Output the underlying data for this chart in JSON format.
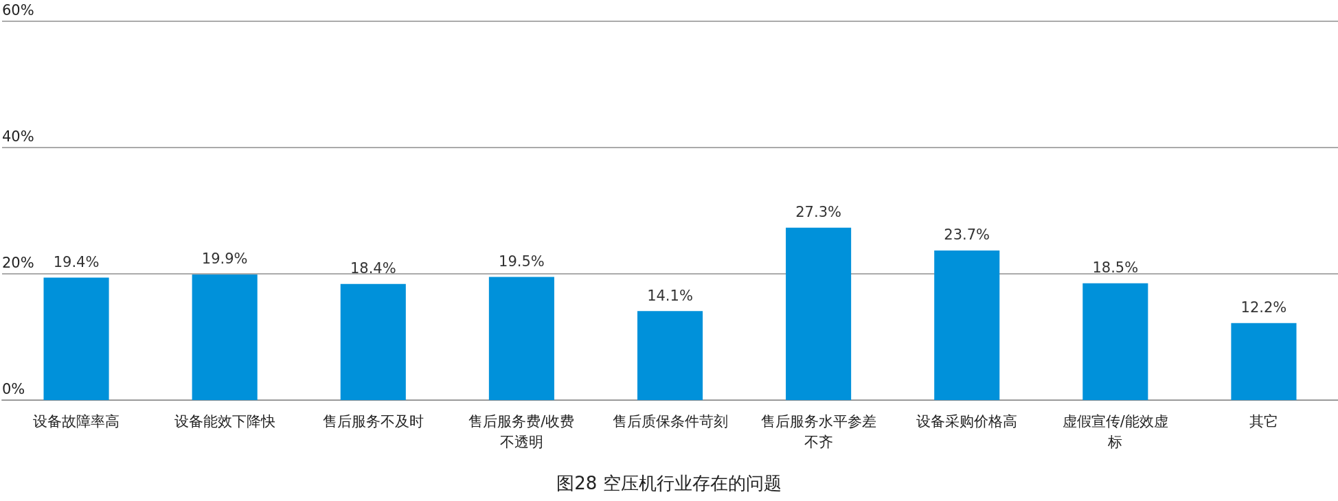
{
  "chart_data": {
    "type": "bar",
    "title": "图28 空压机行业存在的问题",
    "categories": [
      "设备故障率高",
      "设备能效下降快",
      "售后服务不及时",
      "售后服务费/收费不透明",
      "售后质保条件苛刻",
      "售后服务水平参差不齐",
      "设备采购价格高",
      "虚假宣传/能效虚标",
      "其它"
    ],
    "values": [
      19.4,
      19.9,
      18.4,
      19.5,
      14.1,
      27.3,
      23.7,
      18.5,
      12.2
    ],
    "color": "#0091da",
    "ylim": [
      0,
      60
    ],
    "yticks": [
      {
        "value": 0,
        "label": "0%"
      },
      {
        "value": 20,
        "label": "20%"
      },
      {
        "value": 40,
        "label": "40%"
      },
      {
        "value": 60,
        "label": "60%"
      }
    ],
    "value_labels": [
      "19.4%",
      "19.9%",
      "18.4%",
      "19.5%",
      "14.1%",
      "27.3%",
      "23.7%",
      "18.5%",
      "12.2%"
    ],
    "grid": "y"
  }
}
